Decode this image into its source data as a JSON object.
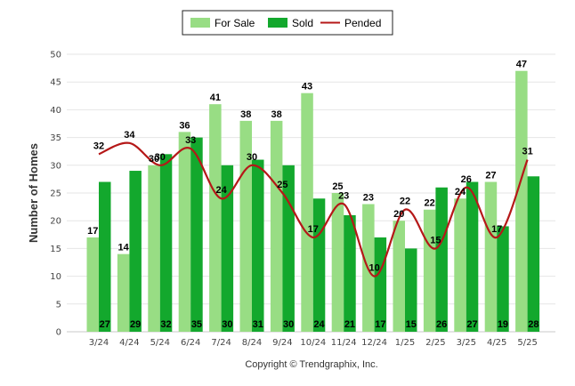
{
  "chart_data": {
    "type": "bar",
    "categories": [
      "3/24",
      "4/24",
      "5/24",
      "6/24",
      "7/24",
      "8/24",
      "9/24",
      "10/24",
      "11/24",
      "12/24",
      "1/25",
      "2/25",
      "3/25",
      "4/25",
      "5/25"
    ],
    "series": [
      {
        "name": "For Sale",
        "kind": "bar",
        "color": "#98dd84",
        "values": [
          17,
          14,
          30,
          36,
          41,
          38,
          38,
          43,
          25,
          23,
          20,
          22,
          24,
          27,
          47
        ]
      },
      {
        "name": "Sold",
        "kind": "bar",
        "color": "#13a82d",
        "values": [
          27,
          29,
          32,
          35,
          30,
          31,
          30,
          24,
          21,
          17,
          15,
          26,
          27,
          19,
          28
        ]
      },
      {
        "name": "Pended",
        "kind": "line",
        "color": "#b51818",
        "values": [
          32,
          34,
          30,
          33,
          24,
          30,
          25,
          17,
          23,
          10,
          22,
          15,
          26,
          17,
          31
        ]
      }
    ],
    "ylabel": "Number of Homes",
    "ylim": [
      0,
      50
    ],
    "yticks": [
      0,
      5,
      10,
      15,
      20,
      25,
      30,
      35,
      40,
      45,
      50
    ],
    "grid": true,
    "legend": "top-center"
  },
  "footer": {
    "credit": "Copyright © Trendgraphix, Inc."
  }
}
